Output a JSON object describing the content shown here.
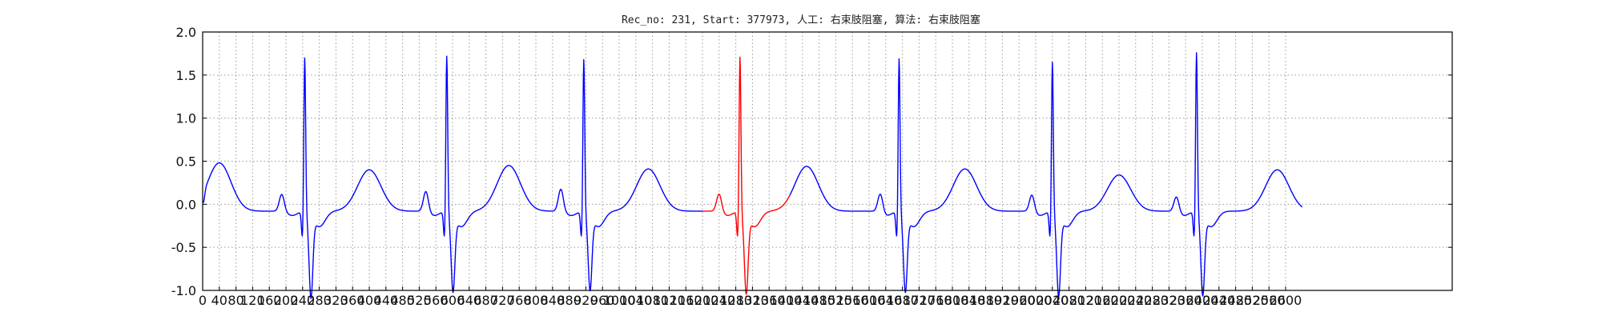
{
  "chart_data": {
    "type": "line",
    "title": "Rec_no: 231, Start: 377973, 人工: 右束肢阻塞, 算法: 右束肢阻塞",
    "xlabel": "",
    "ylabel": "",
    "xlim": [
      0,
      3000
    ],
    "ylim": [
      -1.0,
      2.0
    ],
    "grid": true,
    "yticks": [
      "-1.0",
      "-0.5",
      "0.0",
      "0.5",
      "1.0",
      "1.5",
      "2.0"
    ],
    "xtick_values": [
      0,
      40,
      80,
      120,
      160,
      200,
      240,
      280,
      320,
      360,
      400,
      440,
      480,
      520,
      560,
      600,
      640,
      680,
      720,
      760,
      800,
      840,
      880,
      920,
      960,
      1000,
      1040,
      1080,
      1120,
      1160,
      1200,
      1240,
      1280,
      1320,
      1360,
      1400,
      1440,
      1480,
      1520,
      1560,
      1600,
      1640,
      1680,
      1720,
      1760,
      1800,
      1840,
      1880,
      1920,
      1960,
      2000,
      2040,
      2080,
      2120,
      2160,
      2200,
      2240,
      2280,
      2320,
      2360,
      2400,
      2440,
      2480,
      2520,
      2560,
      2600
    ],
    "colors": {
      "normal": "#0000ff",
      "highlight": "#ff0000"
    },
    "beats_r_peak_x": [
      245,
      586,
      915,
      1290,
      1672,
      2040,
      2386
    ],
    "r_peak_y": [
      1.69,
      1.71,
      1.67,
      1.7,
      1.68,
      1.64,
      1.75
    ],
    "s_trough_y": [
      -1.0,
      -0.93,
      -0.91,
      -0.95,
      -0.93,
      -0.98,
      -0.97
    ],
    "t_wave_peak": [
      {
        "x": 40,
        "y": 0.47
      },
      {
        "x": 400,
        "y": 0.39
      },
      {
        "x": 735,
        "y": 0.44
      },
      {
        "x": 1070,
        "y": 0.4
      },
      {
        "x": 1450,
        "y": 0.43
      },
      {
        "x": 1830,
        "y": 0.4
      },
      {
        "x": 2200,
        "y": 0.33
      },
      {
        "x": 2580,
        "y": 0.39
      }
    ],
    "p_wave_peak": [
      {
        "x": 190,
        "y": 0.06
      },
      {
        "x": 536,
        "y": 0.1
      },
      {
        "x": 860,
        "y": 0.12
      },
      {
        "x": 1240,
        "y": 0.07
      },
      {
        "x": 1627,
        "y": 0.08
      },
      {
        "x": 1991,
        "y": 0.06
      },
      {
        "x": 2338,
        "y": 0.04
      }
    ],
    "highlight_range_x": [
      1200,
      1410
    ],
    "x_end": 2640
  }
}
